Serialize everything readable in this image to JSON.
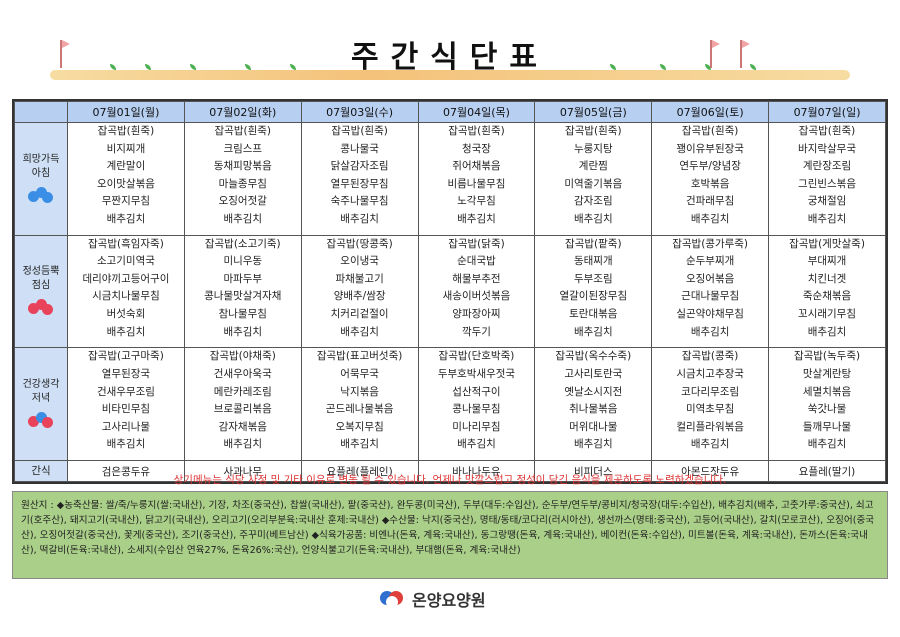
{
  "title": "주간식단표",
  "days": [
    "07월01일(월)",
    "07월02일(화)",
    "07월03일(수)",
    "07월04일(목)",
    "07월05일(금)",
    "07월06일(토)",
    "07월07일(일)"
  ],
  "meals": [
    {
      "label": "희망가득\n아침",
      "days": [
        [
          "잡곡밥(흰죽)",
          "비지찌개",
          "계란말이",
          "오이맛살볶음",
          "무짠지무침",
          "배추김치"
        ],
        [
          "잡곡밥(흰죽)",
          "크림스프",
          "동채피망볶음",
          "마늘종무침",
          "오징어젓갈",
          "배추김치"
        ],
        [
          "잡곡밥(흰죽)",
          "콩나물국",
          "닭살감자조림",
          "열무된장무침",
          "숙주나물무침",
          "배추김치"
        ],
        [
          "잡곡밥(흰죽)",
          "청국장",
          "쥐어채볶음",
          "비름나물무침",
          "노각무침",
          "배추김치"
        ],
        [
          "잡곡밥(흰죽)",
          "누룽지탕",
          "계란찜",
          "미역줄기볶음",
          "감자조림",
          "배추김치"
        ],
        [
          "잡곡밥(흰죽)",
          "꽹이유부된장국",
          "연두부/양념장",
          "호박볶음",
          "건파래무침",
          "배추김치"
        ],
        [
          "잡곡밥(흰죽)",
          "바지락살무국",
          "계란장조림",
          "그린빈스볶음",
          "궁채절임",
          "배추김치"
        ]
      ]
    },
    {
      "label": "정성듬뿍\n점심",
      "days": [
        [
          "잡곡밥(흑임자죽)",
          "소고기미역국",
          "데리야끼고등어구이",
          "시금치나물무침",
          "버섯숙회",
          "배추김치"
        ],
        [
          "잡곡밥(소고기죽)",
          "미니우동",
          "마파두부",
          "콩나물맛살겨자채",
          "참나물무침",
          "배추김치"
        ],
        [
          "잡곡밥(땅콩죽)",
          "오이냉국",
          "파채불고기",
          "양배추/쌈장",
          "치커리겉절이",
          "배추김치"
        ],
        [
          "잡곡밥(닭죽)",
          "순대국밥",
          "해물부추전",
          "새송이버섯볶음",
          "양파장아찌",
          "깍두기"
        ],
        [
          "잡곡밥(팥죽)",
          "동태찌개",
          "두부조림",
          "열갈이된장무침",
          "토란대볶음",
          "배추김치"
        ],
        [
          "잡곡밥(콩가루죽)",
          "순두부찌개",
          "오징어볶음",
          "근대나물무침",
          "실곤약야채무침",
          "배추김치"
        ],
        [
          "잡곡밥(게맛살죽)",
          "부대찌개",
          "치킨너겟",
          "죽순채볶음",
          "꼬시래기무침",
          "배추김치"
        ]
      ]
    },
    {
      "label": "건강생각\n저녁",
      "days": [
        [
          "잡곡밥(고구마죽)",
          "열무된장국",
          "건새우무조림",
          "비타민무침",
          "고사리나물",
          "배추김치"
        ],
        [
          "잡곡밥(야채죽)",
          "건새우아욱국",
          "메란카레조림",
          "브로콜리볶음",
          "감자채볶음",
          "배추김치"
        ],
        [
          "잡곡밥(표고버섯죽)",
          "어묵무국",
          "낙지볶음",
          "곤드레나물볶음",
          "오복지무침",
          "배추김치"
        ],
        [
          "잡곡밥(단호박죽)",
          "두부호박새우젓국",
          "섭산적구이",
          "콩나물무침",
          "미나리무침",
          "배추김치"
        ],
        [
          "잡곡밥(옥수수죽)",
          "고사리토란국",
          "옛날소시지전",
          "취나물볶음",
          "머위대나물",
          "배추김치"
        ],
        [
          "잡곡밥(콩죽)",
          "시금치고추장국",
          "코다리무조림",
          "미역초무침",
          "컬리플라워볶음",
          "배추김치"
        ],
        [
          "잡곡밥(녹두죽)",
          "맛살계란탕",
          "세멸치볶음",
          "쑥갓나물",
          "들깨무나물",
          "배추김치"
        ]
      ]
    }
  ],
  "snack_label": "간식",
  "snacks": [
    "검은콩두유",
    "사과나무",
    "요플레(플레인)",
    "바나나두유",
    "비피더스",
    "아몬드잣두유",
    "요플레(딸기)"
  ],
  "notice": "상기메뉴는 식당 사정 및 기타 이유로 변동 될 수 있습니다. 언제나 맛깔스럽고 정성이 담긴 음식을 제공하도록 노력하겠습니다.",
  "origin": "원산지 : ◆농축산물: 쌀/죽/누룽지(쌀:국내산), 기장, 차조(중국산), 찹쌀(국내산), 팥(중국산), 완두콩(미국산), 두부(대두:수입산), 순두부/연두부/콩비지/청국장(대두:수입산), 배추김치(배추, 고춧가루:중국산), 쇠고기(호주산), 돼지고기(국내산), 닭고기(국내산), 오리고기(오리부분육:국내산 훈제:국내산) ◆수산물: 낙지(중국산), 명태/동태/코다리(러시아산), 생선까스(명태:중국산), 고등어(국내산), 갈치(모로코산), 오징어(중국산), 오징어젓갈(중국산), 꽃게(중국산), 조기(중국산), 주꾸미(베트남산) ◆식육가공품: 비엔나(돈육, 계육:국내산), 동그랑땡(돈육, 계육:국내산), 베이컨(돈육:수입산), 미트볼(돈육, 계육:국내산), 돈까스(돈육:국내산), 떡갈비(돈육:국내산), 소세지(수입산 연육27%, 돈육26%:국산), 언양식불고기(돈육:국내산), 부대햄(돈육, 계육:국내산)",
  "brand": "온양요양원",
  "colors": {
    "header_bg": "#b7cff0",
    "meal_bg": "#cfe0f6",
    "origin_bg": "#a9cf88",
    "notice_text": "#dd3333"
  }
}
